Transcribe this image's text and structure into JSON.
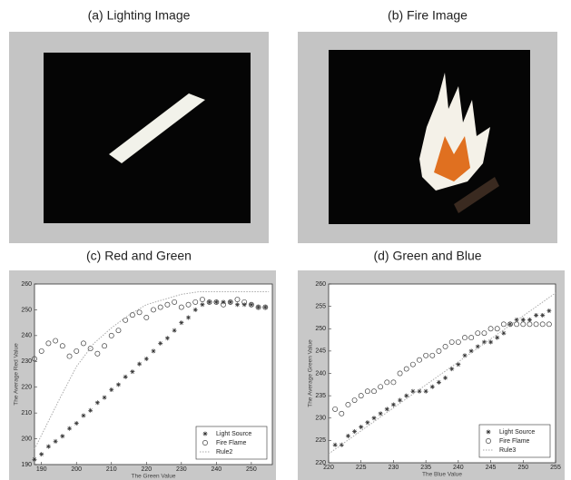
{
  "images": [
    {
      "caption": "(a) Lighting Image"
    },
    {
      "caption": "(b) Fire Image"
    }
  ],
  "chart_data": [
    {
      "type": "scatter",
      "title": "(c) Red and Green",
      "x_label": "The Green Value",
      "y_label": "The Average Red Value",
      "xlim": [
        188,
        256
      ],
      "xticks": [
        190,
        200,
        210,
        220,
        230,
        240,
        250
      ],
      "ylim": [
        190,
        260
      ],
      "yticks": [
        190,
        200,
        210,
        220,
        230,
        240,
        250,
        260
      ],
      "legend": "lower right",
      "series": [
        {
          "name": "Light Source",
          "color": "#333333",
          "marker": "star",
          "x": [
            188,
            190,
            192,
            194,
            196,
            198,
            200,
            202,
            204,
            206,
            208,
            210,
            212,
            214,
            216,
            218,
            220,
            222,
            224,
            226,
            228,
            230,
            232,
            234,
            236,
            238,
            240,
            242,
            244,
            246,
            248,
            250,
            252,
            254
          ],
          "values": [
            192,
            194,
            197,
            199,
            201,
            204,
            206,
            209,
            211,
            214,
            216,
            219,
            221,
            224,
            226,
            229,
            231,
            234,
            237,
            239,
            242,
            245,
            247,
            250,
            252,
            253,
            253,
            253,
            253,
            252,
            252,
            252,
            251,
            251
          ]
        },
        {
          "name": "Fire Flame",
          "color": "#444444",
          "marker": "circle",
          "x": [
            188,
            190,
            192,
            194,
            196,
            198,
            200,
            202,
            204,
            206,
            208,
            210,
            212,
            214,
            216,
            218,
            220,
            222,
            224,
            226,
            228,
            230,
            232,
            234,
            236,
            238,
            240,
            242,
            244,
            246,
            248,
            250,
            252,
            254
          ],
          "values": [
            231,
            234,
            237,
            238,
            236,
            232,
            234,
            237,
            235,
            233,
            236,
            240,
            242,
            246,
            248,
            249,
            247,
            250,
            251,
            252,
            253,
            251,
            252,
            253,
            254,
            253,
            253,
            252,
            253,
            254,
            253,
            252,
            251,
            251
          ]
        },
        {
          "name": "Rule2",
          "color": "#aaaaaa",
          "marker": "line",
          "x": [
            188,
            195,
            200,
            205,
            210,
            215,
            220,
            225,
            230,
            235,
            240,
            255
          ],
          "values": [
            196,
            215,
            228,
            237,
            243,
            248,
            252,
            254,
            256,
            257,
            257,
            257
          ]
        }
      ]
    },
    {
      "type": "scatter",
      "title": "(d) Green and Blue",
      "x_label": "The Blue Value",
      "y_label": "The Average Green Value",
      "xlim": [
        220,
        255
      ],
      "xticks": [
        220,
        225,
        230,
        235,
        240,
        245,
        250,
        255
      ],
      "ylim": [
        220,
        260
      ],
      "yticks": [
        220,
        225,
        230,
        235,
        240,
        245,
        250,
        255,
        260
      ],
      "legend": "lower right",
      "series": [
        {
          "name": "Light Source",
          "color": "#333333",
          "marker": "star",
          "x": [
            221,
            222,
            223,
            224,
            225,
            226,
            227,
            228,
            229,
            230,
            231,
            232,
            233,
            234,
            235,
            236,
            237,
            238,
            239,
            240,
            241,
            242,
            243,
            244,
            245,
            246,
            247,
            248,
            249,
            250,
            251,
            252,
            253,
            254
          ],
          "values": [
            224,
            224,
            226,
            227,
            228,
            229,
            230,
            231,
            232,
            233,
            234,
            235,
            236,
            236,
            236,
            237,
            238,
            239,
            241,
            242,
            244,
            245,
            246,
            247,
            247,
            248,
            249,
            251,
            252,
            252,
            252,
            253,
            253,
            254
          ]
        },
        {
          "name": "Fire Flame",
          "color": "#444444",
          "marker": "circle",
          "x": [
            221,
            222,
            223,
            224,
            225,
            226,
            227,
            228,
            229,
            230,
            231,
            232,
            233,
            234,
            235,
            236,
            237,
            238,
            239,
            240,
            241,
            242,
            243,
            244,
            245,
            246,
            247,
            248,
            249,
            250,
            251,
            252,
            253,
            254
          ],
          "values": [
            232,
            231,
            233,
            234,
            235,
            236,
            236,
            237,
            238,
            238,
            240,
            241,
            242,
            243,
            244,
            244,
            245,
            246,
            247,
            247,
            248,
            248,
            249,
            249,
            250,
            250,
            251,
            251,
            251,
            251,
            251,
            251,
            251,
            251
          ]
        },
        {
          "name": "Rule3",
          "color": "#aaaaaa",
          "marker": "line",
          "x": [
            220,
            255
          ],
          "values": [
            222,
            258
          ]
        }
      ]
    }
  ]
}
